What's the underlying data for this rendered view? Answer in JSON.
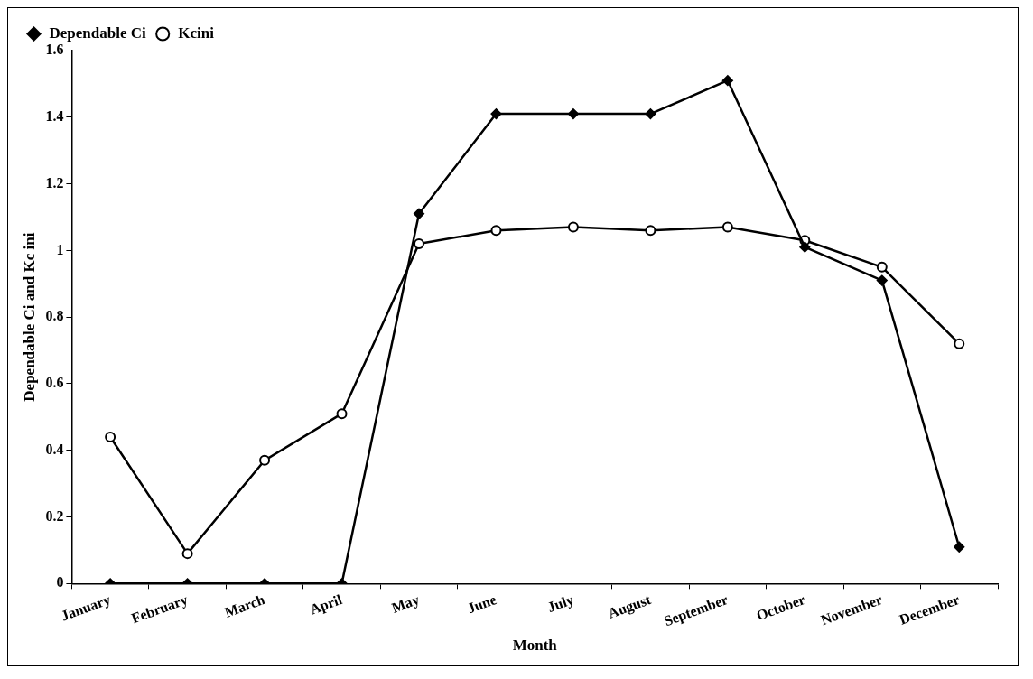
{
  "chart_data": {
    "type": "line",
    "xlabel": "Month",
    "ylabel": "Dependable Ci and Kc ini",
    "categories": [
      "January",
      "February",
      "March",
      "April",
      "May",
      "June",
      "July",
      "August",
      "September",
      "October",
      "November",
      "December"
    ],
    "series": [
      {
        "name": "Dependable Ci",
        "color": "#000000",
        "marker": "diamond",
        "values": [
          0,
          0,
          0,
          0,
          1.11,
          1.41,
          1.41,
          1.41,
          1.51,
          1.01,
          0.91,
          0.11
        ]
      },
      {
        "name": "Kcini",
        "color": "#000000",
        "marker": "circle",
        "values": [
          0.44,
          0.09,
          0.37,
          0.51,
          1.02,
          1.06,
          1.07,
          1.06,
          1.07,
          1.03,
          0.95,
          0.72
        ]
      }
    ],
    "ylim": [
      0,
      1.6
    ],
    "yticks": [
      0,
      0.2,
      0.4,
      0.6,
      0.8,
      1,
      1.2,
      1.4,
      1.6
    ],
    "grid": false,
    "legend": "top left",
    "line_style": "solid"
  }
}
